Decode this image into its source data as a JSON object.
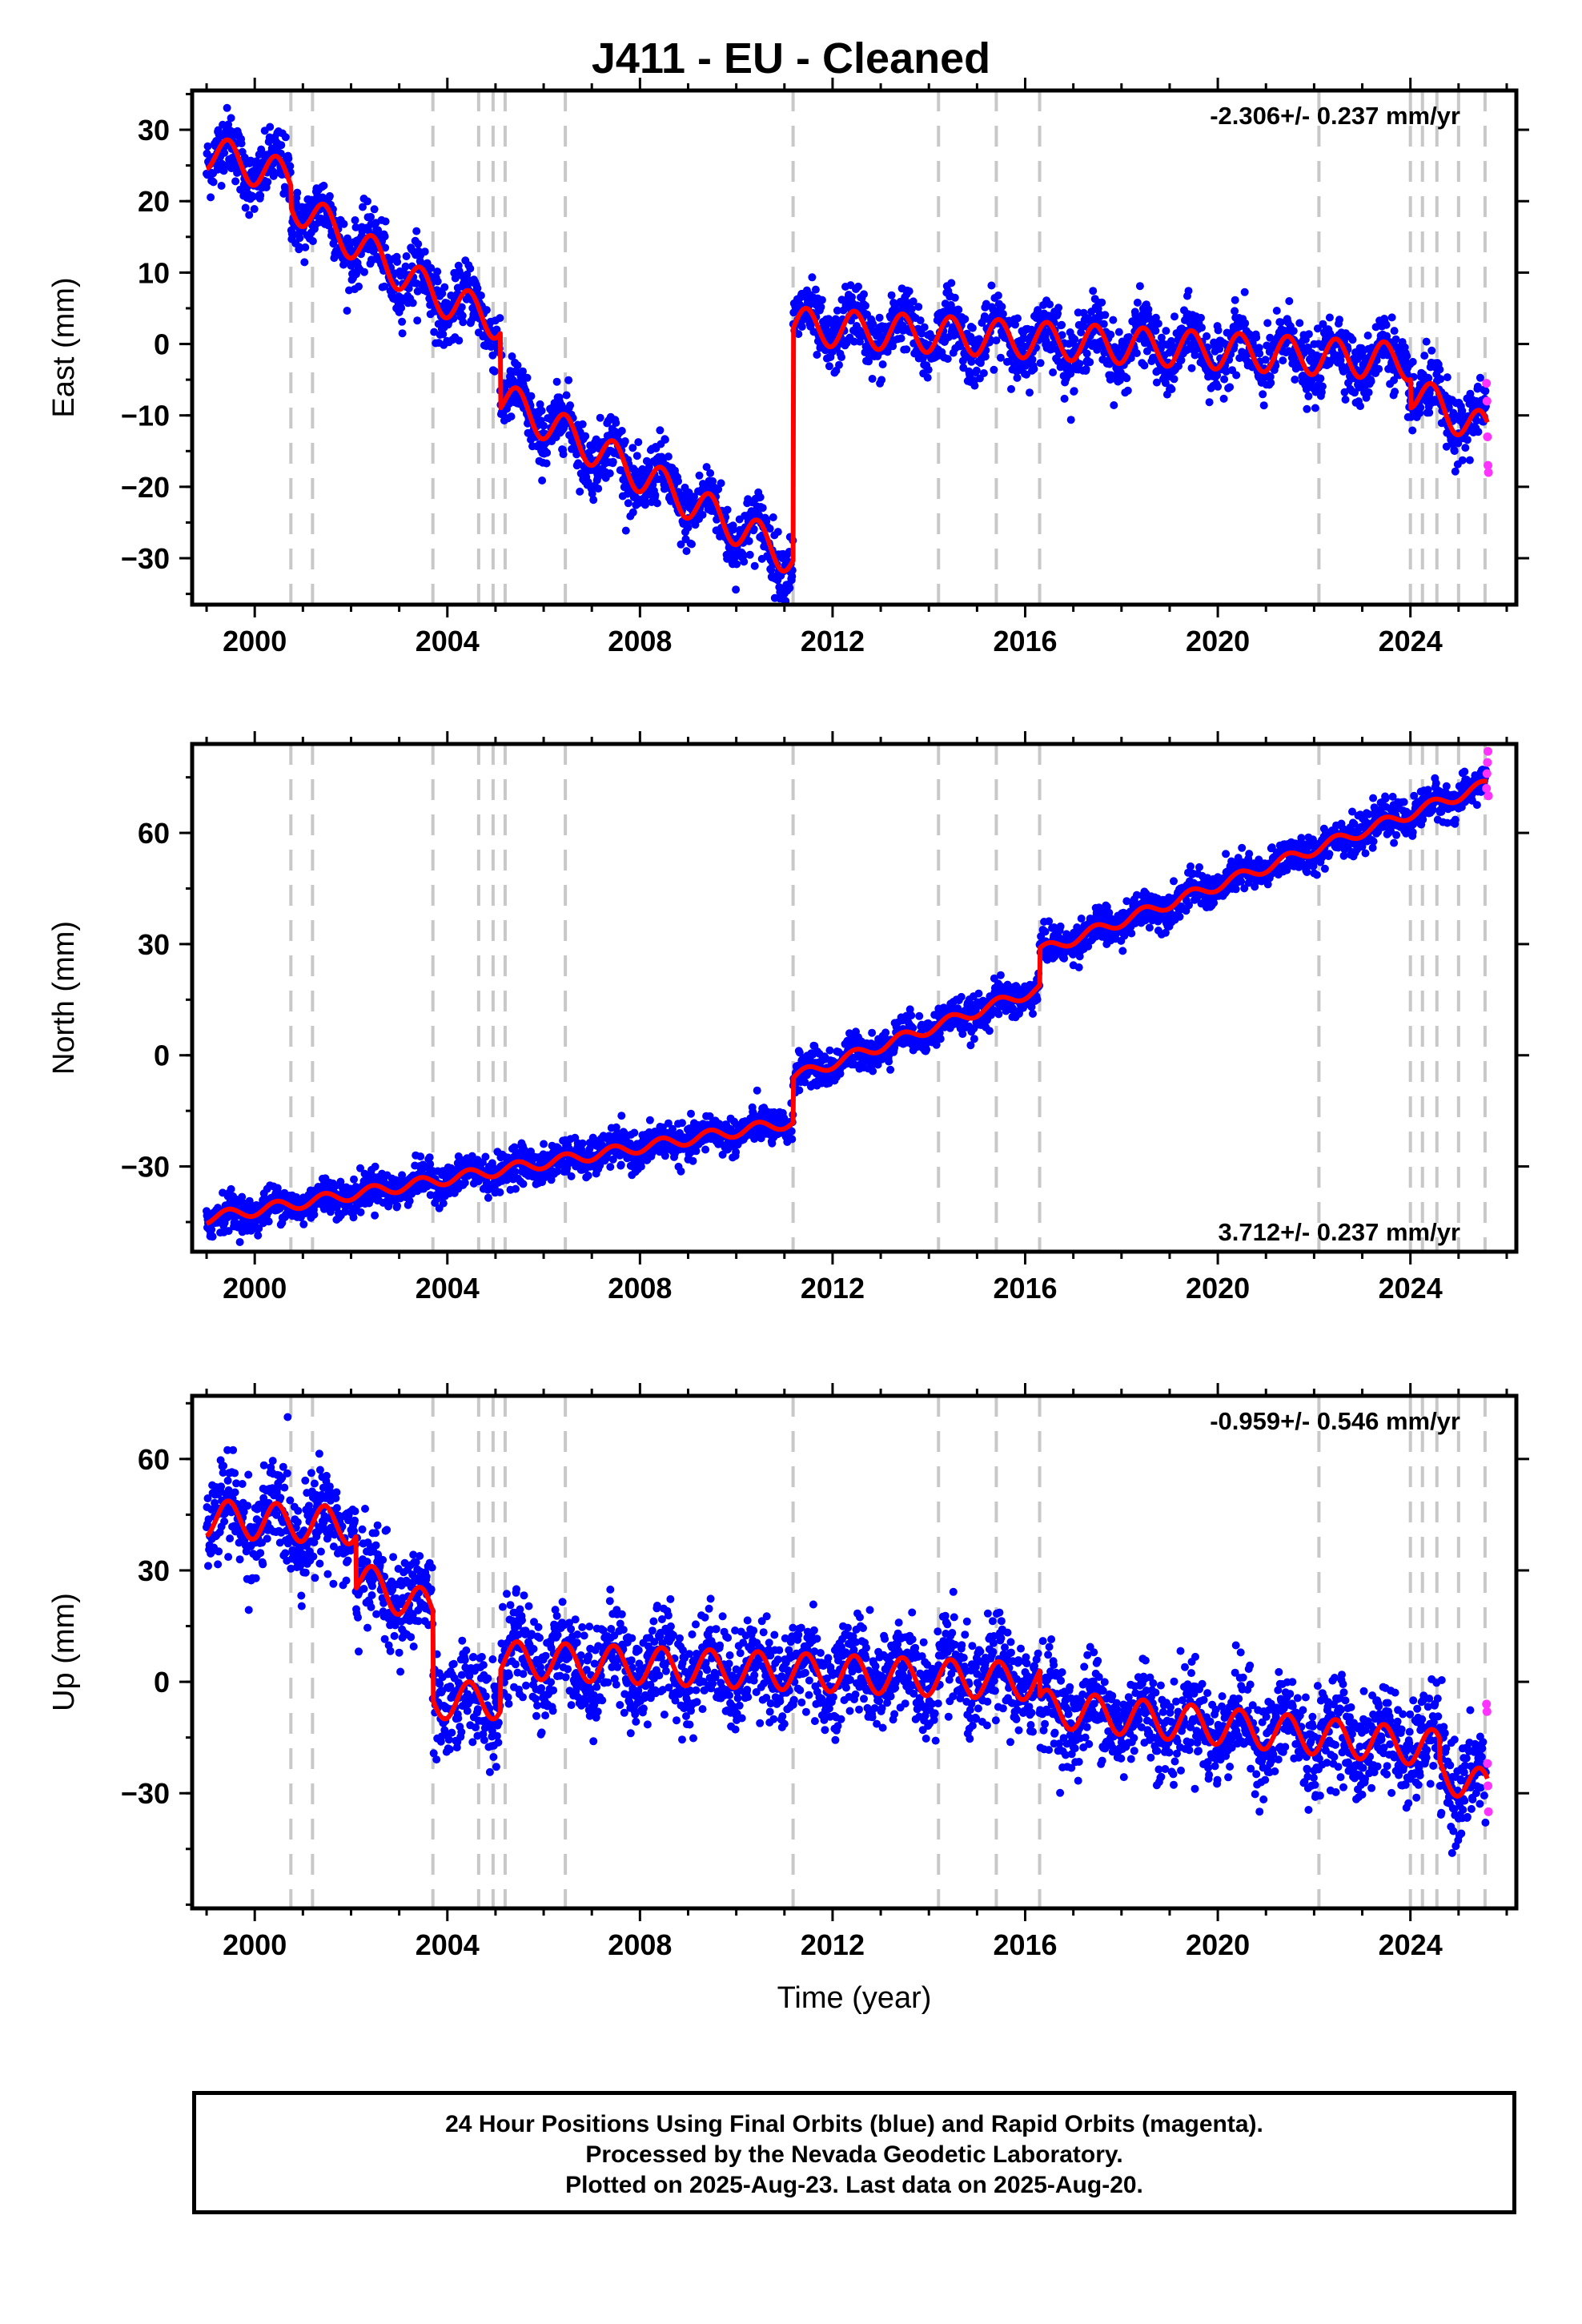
{
  "title": "J411  - EU - Cleaned",
  "caption": {
    "line1": "24 Hour Positions Using Final Orbits (blue) and Rapid Orbits (magenta).",
    "line2": "Processed by the Nevada Geodetic Laboratory.",
    "line3": "Plotted on 2025-Aug-23. Last data on 2025-Aug-20."
  },
  "colors": {
    "final": "#0000ff",
    "rapid": "#ff33ff",
    "model": "#ff0000",
    "event_line": "#c8c8c8"
  },
  "chart_data": [
    {
      "type": "scatter",
      "component": "east",
      "ylabel": "East (mm)",
      "xlabel": "",
      "rate_label": "-2.306+/- 0.237 mm/yr",
      "rate_position": "top-right",
      "xlim": [
        1998.7,
        2026.2
      ],
      "ylim": [
        -36.5,
        35.5
      ],
      "xticks": [
        2000,
        2004,
        2008,
        2012,
        2016,
        2020,
        2024
      ],
      "xtick_labels": [
        "2000",
        "2004",
        "2008",
        "2012",
        "2016",
        "2020",
        "2024"
      ],
      "yticks": [
        30,
        20,
        10,
        0,
        -10,
        -20,
        -30
      ],
      "ytick_labels": [
        "30",
        "20",
        "10",
        "0",
        "−10",
        "−20",
        "−30"
      ],
      "noise_mm": 2.2,
      "amplitude_mm": 2.6,
      "segments": [
        {
          "t0": 1999.0,
          "t1": 2000.75,
          "y0": 27.0,
          "y1": 23.0
        },
        {
          "t0": 2000.75,
          "t1": 2003.7,
          "y0": 20.0,
          "y1": 7.0
        },
        {
          "t0": 2003.7,
          "t1": 2005.1,
          "y0": 7.0,
          "y1": 3.0
        },
        {
          "t0": 2005.1,
          "t1": 2011.18,
          "y0": -7.5,
          "y1": -30.0
        },
        {
          "t0": 2011.18,
          "t1": 2024.0,
          "y0": 2.5,
          "y1": -2.5
        },
        {
          "t0": 2024.0,
          "t1": 2025.6,
          "y0": -6.5,
          "y1": -12.5
        }
      ],
      "rapid_points": [
        [
          2025.58,
          -5.5
        ],
        [
          2025.59,
          -8.0
        ],
        [
          2025.6,
          -13.0
        ],
        [
          2025.61,
          -17.0
        ],
        [
          2025.62,
          -18.0
        ]
      ]
    },
    {
      "type": "scatter",
      "component": "north",
      "ylabel": "North (mm)",
      "xlabel": "",
      "rate_label": "3.712+/- 0.237 mm/yr",
      "rate_position": "bottom-right",
      "xlim": [
        1998.7,
        2026.2
      ],
      "ylim": [
        -53.0,
        84.0
      ],
      "xticks": [
        2000,
        2004,
        2008,
        2012,
        2016,
        2020,
        2024
      ],
      "xtick_labels": [
        "2000",
        "2004",
        "2008",
        "2012",
        "2016",
        "2020",
        "2024"
      ],
      "yticks": [
        60,
        30,
        0,
        -30
      ],
      "ytick_labels": [
        "60",
        "30",
        "0",
        "−30"
      ],
      "noise_mm": 2.4,
      "amplitude_mm": 1.5,
      "segments": [
        {
          "t0": 1999.0,
          "t1": 2011.18,
          "y0": -44.0,
          "y1": -18.0
        },
        {
          "t0": 2011.18,
          "t1": 2016.3,
          "y0": -6.0,
          "y1": 18.0
        },
        {
          "t0": 2016.3,
          "t1": 2025.6,
          "y0": 28.0,
          "y1": 73.0
        }
      ],
      "rapid_points": [
        [
          2025.58,
          72.0
        ],
        [
          2025.59,
          76.0
        ],
        [
          2025.6,
          79.0
        ],
        [
          2025.61,
          82.0
        ],
        [
          2025.62,
          70.0
        ]
      ]
    },
    {
      "type": "scatter",
      "component": "up",
      "ylabel": "Up (mm)",
      "xlabel": "Time (year)",
      "rate_label": "-0.959+/- 0.546 mm/yr",
      "rate_position": "top-right",
      "xlim": [
        1998.7,
        2026.2
      ],
      "ylim": [
        -61.0,
        77.0
      ],
      "xticks": [
        2000,
        2004,
        2008,
        2012,
        2016,
        2020,
        2024
      ],
      "xtick_labels": [
        "2000",
        "2004",
        "2008",
        "2012",
        "2016",
        "2020",
        "2024"
      ],
      "yticks": [
        60,
        30,
        0,
        -30
      ],
      "ytick_labels": [
        "60",
        "30",
        "0",
        "−30"
      ],
      "noise_mm": 6.5,
      "amplitude_mm": 5.0,
      "segments": [
        {
          "t0": 1999.0,
          "t1": 2002.1,
          "y0": 44.0,
          "y1": 42.0
        },
        {
          "t0": 2002.1,
          "t1": 2003.7,
          "y0": 28.0,
          "y1": 19.0
        },
        {
          "t0": 2003.7,
          "t1": 2005.1,
          "y0": -5.0,
          "y1": -5.0
        },
        {
          "t0": 2005.1,
          "t1": 2016.3,
          "y0": 6.0,
          "y1": 0.0
        },
        {
          "t0": 2016.3,
          "t1": 2024.6,
          "y0": -7.0,
          "y1": -18.0
        },
        {
          "t0": 2024.6,
          "t1": 2025.6,
          "y0": -24.0,
          "y1": -29.0
        }
      ],
      "rapid_points": [
        [
          2025.58,
          -6.0
        ],
        [
          2025.59,
          -8.0
        ],
        [
          2025.6,
          -22.0
        ],
        [
          2025.61,
          -28.0
        ],
        [
          2025.62,
          -35.0
        ]
      ]
    }
  ],
  "event_lines": [
    2000.75,
    2001.2,
    2003.7,
    2004.65,
    2004.95,
    2005.2,
    2006.45,
    2011.18,
    2014.2,
    2015.4,
    2016.3,
    2022.1,
    2024.0,
    2024.25,
    2024.55,
    2025.0,
    2025.55
  ]
}
